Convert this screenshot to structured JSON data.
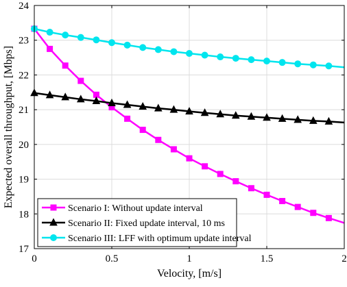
{
  "chart_data": {
    "type": "line",
    "title": "",
    "xlabel": "Velocity, [m/s]",
    "ylabel": "Expected overall throughput, [Mbps]",
    "xlim": [
      0,
      2
    ],
    "ylim": [
      17,
      24
    ],
    "xticks": [
      0,
      0.5,
      1,
      1.5,
      2
    ],
    "xtick_labels": [
      "0",
      "0.5",
      "1",
      "1.5",
      "2"
    ],
    "yticks": [
      17,
      18,
      19,
      20,
      21,
      22,
      23,
      24
    ],
    "ytick_labels": [
      "17",
      "18",
      "19",
      "20",
      "21",
      "22",
      "23",
      "24"
    ],
    "grid": true,
    "legend_position": "bottom-left",
    "series": [
      {
        "name": "Scenario I: Without update interval",
        "color": "#ff00ff",
        "marker": "square",
        "x": [
          0,
          0.1,
          0.2,
          0.3,
          0.4,
          0.5,
          0.6,
          0.7,
          0.8,
          0.9,
          1.0,
          1.1,
          1.2,
          1.3,
          1.4,
          1.5,
          1.6,
          1.7,
          1.8,
          1.9,
          2.0
        ],
        "y": [
          23.33,
          22.75,
          22.27,
          21.83,
          21.43,
          21.07,
          20.74,
          20.42,
          20.13,
          19.86,
          19.6,
          19.37,
          19.15,
          18.94,
          18.74,
          18.55,
          18.37,
          18.2,
          18.03,
          17.88,
          17.74
        ]
      },
      {
        "name": "Scenario II: Fixed update interval, 10 ms",
        "color": "#000000",
        "marker": "triangle",
        "x": [
          0,
          0.1,
          0.2,
          0.3,
          0.4,
          0.5,
          0.6,
          0.7,
          0.8,
          0.9,
          1.0,
          1.1,
          1.2,
          1.3,
          1.4,
          1.5,
          1.6,
          1.7,
          1.8,
          1.9,
          2.0
        ],
        "y": [
          21.48,
          21.42,
          21.36,
          21.3,
          21.25,
          21.19,
          21.14,
          21.09,
          21.04,
          21.0,
          20.95,
          20.91,
          20.87,
          20.83,
          20.8,
          20.77,
          20.74,
          20.71,
          20.68,
          20.66,
          20.63
        ]
      },
      {
        "name": "Scenario III: LFF with optimum update interval",
        "color": "#00e5ee",
        "marker": "circle",
        "x": [
          0,
          0.1,
          0.2,
          0.3,
          0.4,
          0.5,
          0.6,
          0.7,
          0.8,
          0.9,
          1.0,
          1.1,
          1.2,
          1.3,
          1.4,
          1.5,
          1.6,
          1.7,
          1.8,
          1.9,
          2.0
        ],
        "y": [
          23.33,
          23.23,
          23.15,
          23.08,
          23.01,
          22.93,
          22.86,
          22.79,
          22.73,
          22.67,
          22.62,
          22.57,
          22.52,
          22.48,
          22.44,
          22.4,
          22.36,
          22.32,
          22.29,
          22.26,
          22.22
        ]
      }
    ]
  }
}
